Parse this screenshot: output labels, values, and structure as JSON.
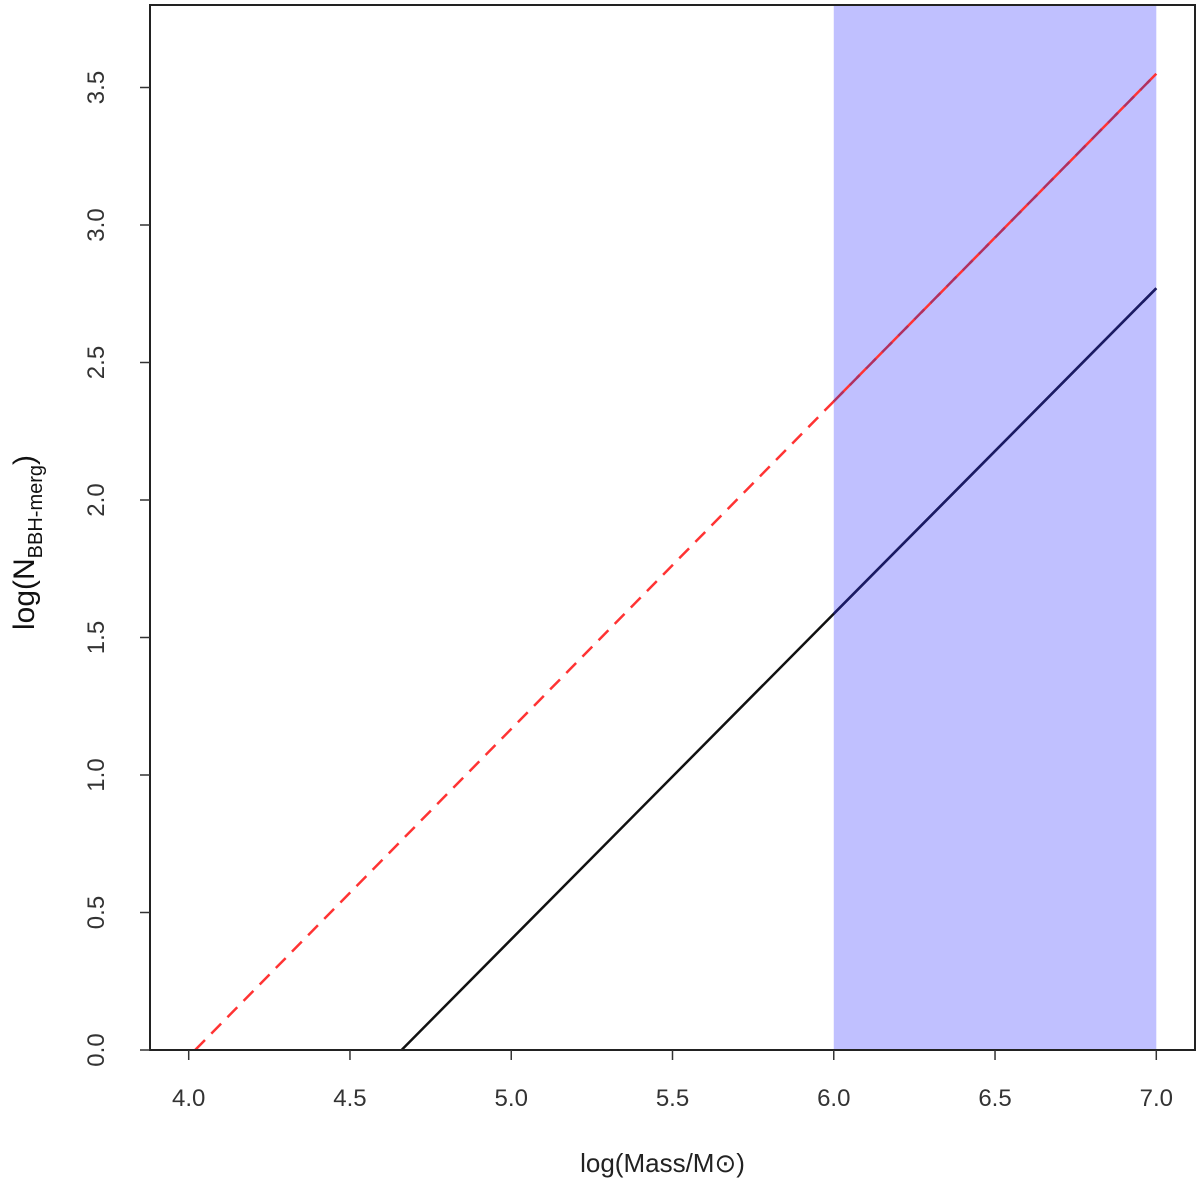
{
  "chart_data": {
    "type": "line",
    "xlabel": "log(Mass/M⊙)",
    "ylabel_main": "log(N",
    "ylabel_sub": "BBH-merg",
    "ylabel_close": ")",
    "xlim": [
      3.88,
      7.12
    ],
    "ylim": [
      0.0,
      3.8
    ],
    "x_ticks": [
      "4.0",
      "4.5",
      "5.0",
      "5.5",
      "6.0",
      "6.5",
      "7.0"
    ],
    "y_ticks": [
      "0.0",
      "0.5",
      "1.0",
      "1.5",
      "2.0",
      "2.5",
      "3.0",
      "3.5"
    ],
    "grid": false,
    "legend": "none",
    "shaded_region": {
      "x": [
        6.0,
        7.0
      ],
      "color": "#c0c0ff"
    },
    "series": [
      {
        "style": "dashed",
        "color": "#ff3333",
        "x": [
          4.02,
          7.0
        ],
        "y": [
          0.0,
          3.55
        ]
      },
      {
        "style": "solid",
        "color": "#111111",
        "x": [
          4.66,
          7.0
        ],
        "y": [
          0.0,
          2.77
        ]
      }
    ]
  }
}
